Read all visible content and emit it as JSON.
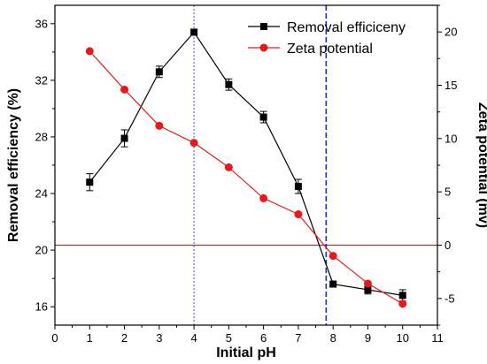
{
  "chart_data": {
    "type": "line",
    "xlabel": "Initial pH",
    "ylabel_left": "Removal efficiency (%)",
    "ylabel_right": "Zeta potential (mv)",
    "xlim": [
      0,
      11
    ],
    "ylim_left": [
      14.7,
      37.3
    ],
    "ylim_right": [
      -7.5,
      22.5
    ],
    "x_ticks": [
      0,
      1,
      2,
      3,
      4,
      5,
      6,
      7,
      8,
      9,
      10,
      11
    ],
    "y_ticks_left": [
      16,
      20,
      24,
      28,
      32,
      36
    ],
    "y_ticks_right": [
      -5,
      0,
      5,
      10,
      15,
      20
    ],
    "series": [
      {
        "name": "Removal efficiceny",
        "axis": "left",
        "color": "#000000",
        "marker": "square",
        "x": [
          1,
          2,
          3,
          4,
          5,
          6,
          7,
          8,
          9,
          10
        ],
        "y": [
          24.8,
          27.9,
          32.6,
          35.4,
          31.7,
          29.4,
          24.5,
          17.6,
          17.2,
          16.8
        ],
        "error": [
          0.6,
          0.6,
          0.4,
          0.2,
          0.4,
          0.4,
          0.5,
          0.1,
          0.3,
          0.4
        ]
      },
      {
        "name": "Zeta potential",
        "axis": "right",
        "color": "#e8191c",
        "marker": "circle",
        "x": [
          1,
          2,
          3,
          4,
          5,
          6,
          7,
          8,
          9,
          10
        ],
        "y": [
          18.2,
          14.6,
          11.2,
          9.6,
          7.3,
          4.4,
          2.9,
          -1.0,
          -3.6,
          -5.5
        ]
      }
    ],
    "reference_lines": [
      {
        "orientation": "horizontal",
        "axis": "right",
        "value": 0,
        "color": "#e8191c",
        "style": "solid"
      },
      {
        "orientation": "vertical",
        "value": 4,
        "color": "#6b6bd8",
        "style": "dotted"
      },
      {
        "orientation": "vertical",
        "value": 7.8,
        "color": "#1f2fa8",
        "style": "dashed"
      }
    ],
    "legend_position": "top-right",
    "grid": false
  }
}
